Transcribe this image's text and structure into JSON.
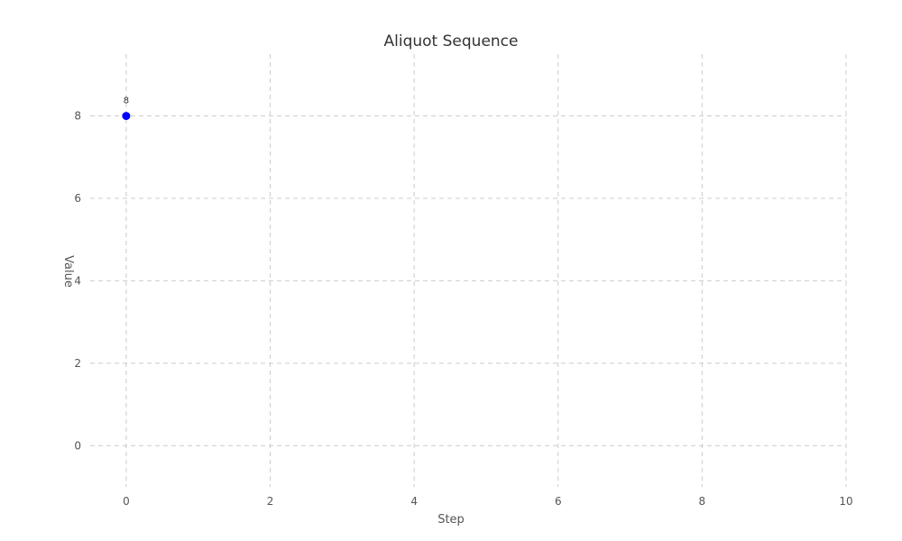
{
  "chart_data": {
    "type": "scatter",
    "title": "Aliquot Sequence",
    "xlabel": "Step",
    "ylabel": "Value",
    "xlim": [
      -0.5,
      10
    ],
    "ylim": [
      -1,
      9.5
    ],
    "xticks": [
      0,
      2,
      4,
      6,
      8,
      10
    ],
    "yticks": [
      0,
      2,
      4,
      6,
      8
    ],
    "grid": true,
    "point_color": "#0000ff",
    "series": [
      {
        "x": [
          0
        ],
        "y": [
          8
        ],
        "labels": [
          "8"
        ]
      }
    ]
  }
}
